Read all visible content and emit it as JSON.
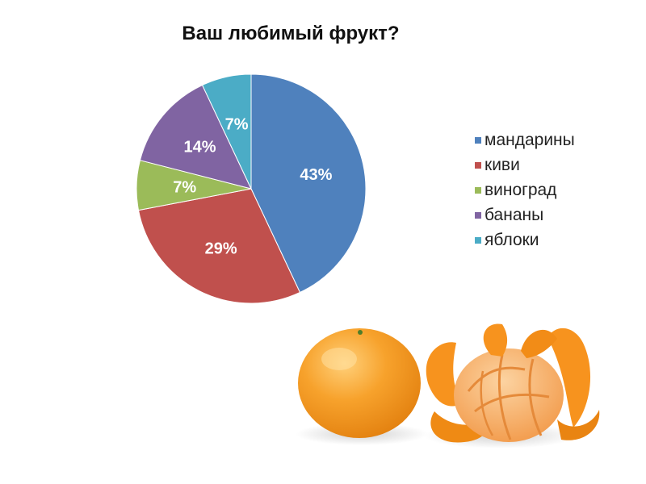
{
  "chart_data": {
    "type": "pie",
    "title": "Ваш любимый фрукт?",
    "legend_position": "right",
    "labels_inside": true,
    "slices": [
      {
        "label": "мандарины",
        "value": 43,
        "display": "43%",
        "color": "#4F81BD"
      },
      {
        "label": "киви",
        "value": 29,
        "display": "29%",
        "color": "#C0504D"
      },
      {
        "label": "виноград",
        "value": 7,
        "display": "7%",
        "color": "#9BBB59"
      },
      {
        "label": "бананы",
        "value": 14,
        "display": "14%",
        "color": "#8064A2"
      },
      {
        "label": "яблоки",
        "value": 7,
        "display": "7%",
        "color": "#4BACC6"
      }
    ]
  },
  "illustration": {
    "icon": "tangerines-icon",
    "peel_color": "#F7941D",
    "flesh_color": "#F9B36A"
  }
}
